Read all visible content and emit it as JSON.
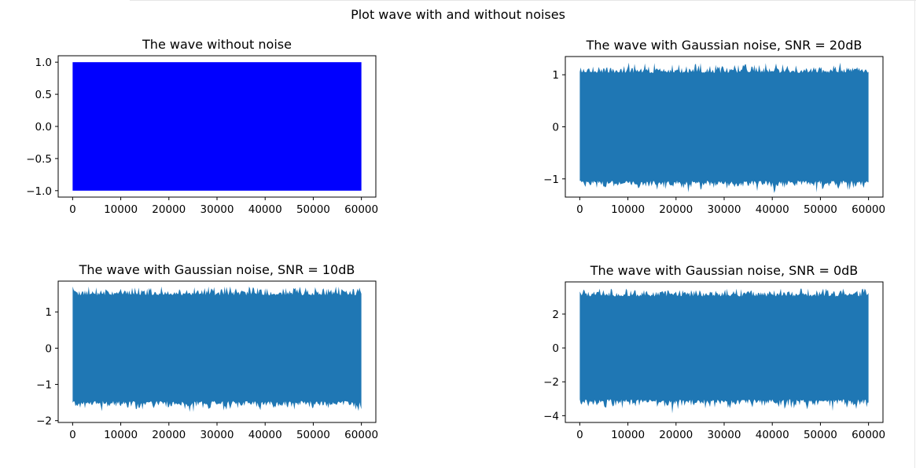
{
  "figure": {
    "suptitle": "Plot wave with and without noises"
  },
  "chart_data": [
    {
      "type": "line",
      "title": "The wave without noise",
      "xlabel": "",
      "ylabel": "",
      "xlim": [
        -3000,
        63000
      ],
      "ylim": [
        -1.1,
        1.1
      ],
      "xticks": [
        0,
        10000,
        20000,
        30000,
        40000,
        50000,
        60000
      ],
      "xtick_labels": [
        "0",
        "10000",
        "20000",
        "30000",
        "40000",
        "50000",
        "60000"
      ],
      "yticks": [
        1.0,
        0.5,
        0.0,
        -0.5,
        -1.0
      ],
      "ytick_labels": [
        "1.0",
        "0.5",
        "0.0",
        "−0.5",
        "−1.0"
      ],
      "series": [
        {
          "color": "#0000ff",
          "x_range": [
            0,
            60000
          ],
          "y_range": [
            -1.0,
            1.0
          ]
        }
      ],
      "grid": false
    },
    {
      "type": "line",
      "title": "The wave with Gaussian noise, SNR = 20dB",
      "xlabel": "",
      "ylabel": "",
      "xlim": [
        -3000,
        63000
      ],
      "ylim": [
        -1.35,
        1.35
      ],
      "xticks": [
        0,
        10000,
        20000,
        30000,
        40000,
        50000,
        60000
      ],
      "xtick_labels": [
        "0",
        "10000",
        "20000",
        "30000",
        "40000",
        "50000",
        "60000"
      ],
      "yticks": [
        1,
        0,
        -1
      ],
      "ytick_labels": [
        "1",
        "0",
        "−1"
      ],
      "series": [
        {
          "color": "#1f77b4",
          "x_range": [
            0,
            60000
          ],
          "y_range": [
            -1.27,
            1.25
          ]
        }
      ],
      "grid": false
    },
    {
      "type": "line",
      "title": "The wave with Gaussian noise, SNR = 10dB",
      "xlabel": "",
      "ylabel": "",
      "xlim": [
        -3000,
        63000
      ],
      "ylim": [
        -2.05,
        1.85
      ],
      "xticks": [
        0,
        10000,
        20000,
        30000,
        40000,
        50000,
        60000
      ],
      "xtick_labels": [
        "0",
        "10000",
        "20000",
        "30000",
        "40000",
        "50000",
        "60000"
      ],
      "yticks": [
        1,
        0,
        -1,
        -2
      ],
      "ytick_labels": [
        "1",
        "0",
        "−1",
        "−2"
      ],
      "series": [
        {
          "color": "#1f77b4",
          "x_range": [
            0,
            60000
          ],
          "y_range": [
            -1.85,
            1.7
          ]
        }
      ],
      "grid": false
    },
    {
      "type": "line",
      "title": "The wave with Gaussian noise, SNR = 0dB",
      "xlabel": "",
      "ylabel": "",
      "xlim": [
        -3000,
        63000
      ],
      "ylim": [
        -4.4,
        3.9
      ],
      "xticks": [
        0,
        10000,
        20000,
        30000,
        40000,
        50000,
        60000
      ],
      "xtick_labels": [
        "0",
        "10000",
        "20000",
        "30000",
        "40000",
        "50000",
        "60000"
      ],
      "yticks": [
        2,
        0,
        -2,
        -4
      ],
      "ytick_labels": [
        "2",
        "0",
        "−2",
        "−4"
      ],
      "series": [
        {
          "color": "#1f77b4",
          "x_range": [
            0,
            60000
          ],
          "y_range": [
            -3.9,
            3.5
          ]
        }
      ],
      "grid": false
    }
  ]
}
